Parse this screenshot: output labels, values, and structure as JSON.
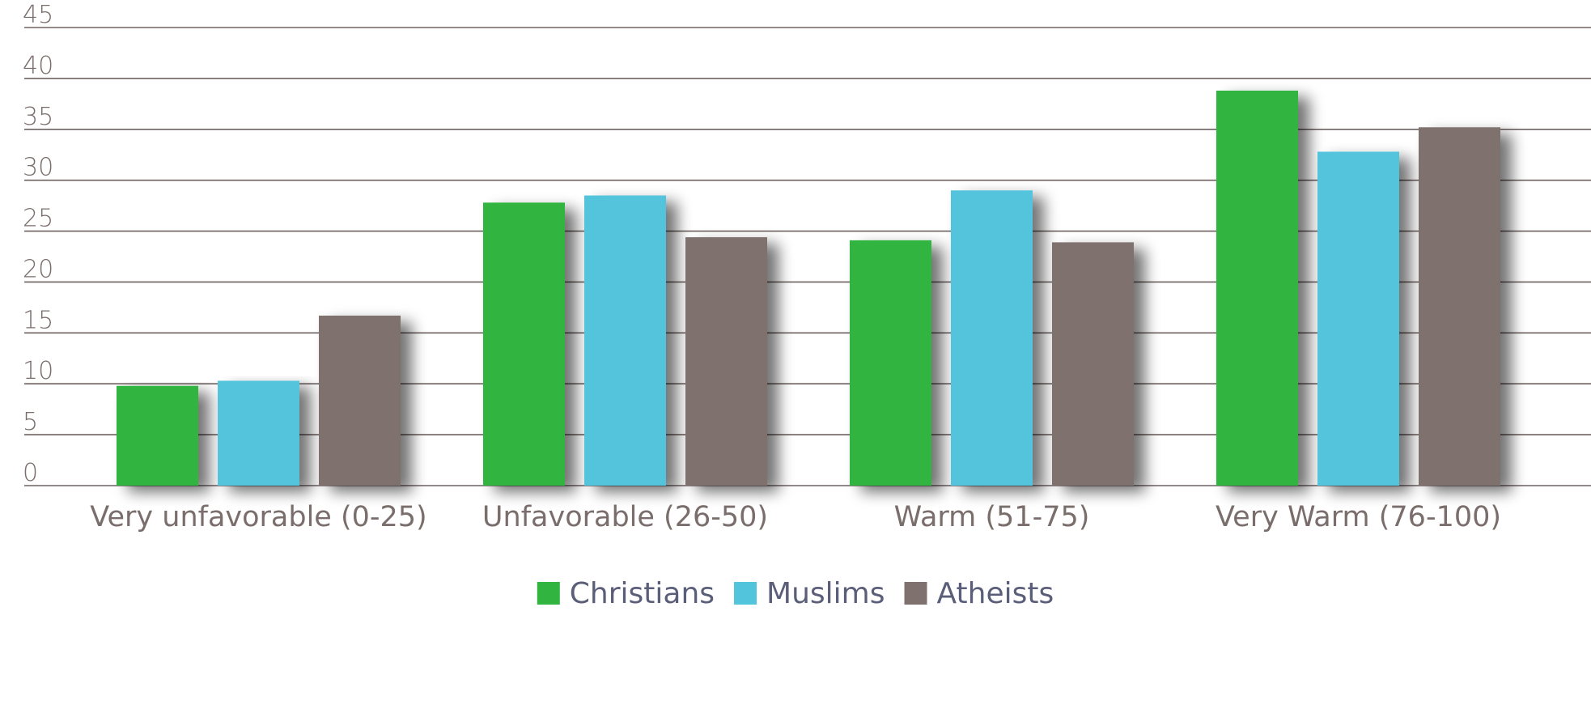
{
  "chart_data": {
    "type": "bar",
    "title": "",
    "xlabel": "",
    "ylabel": "",
    "ylim": [
      0,
      45
    ],
    "yticks": [
      0,
      5,
      10,
      15,
      20,
      25,
      30,
      35,
      40,
      45
    ],
    "grid": true,
    "legend_position": "bottom-center",
    "categories": [
      "Very unfavorable (0-25)",
      "Unfavorable (26-50)",
      "Warm (51-75)",
      "Very Warm (76-100)"
    ],
    "series": [
      {
        "name": "Christians",
        "color": "#32b441",
        "values": [
          9.8,
          27.8,
          24.1,
          38.8
        ]
      },
      {
        "name": "Muslims",
        "color": "#52c4dc",
        "values": [
          10.3,
          28.5,
          29.0,
          32.8
        ]
      },
      {
        "name": "Atheists",
        "color": "#7f716d",
        "values": [
          16.7,
          24.4,
          23.9,
          35.2
        ]
      }
    ]
  }
}
